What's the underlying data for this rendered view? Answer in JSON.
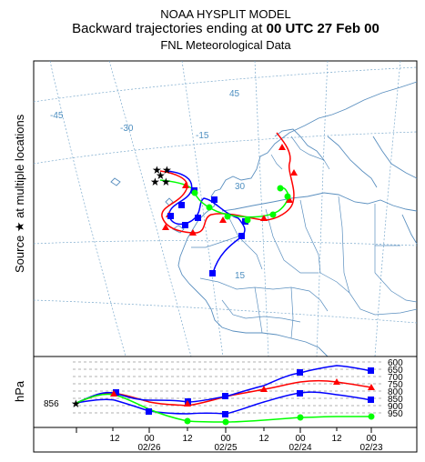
{
  "header": {
    "title_line1": "NOAA HYSPLIT MODEL",
    "title_line2_prefix": "Backward trajectories ending at ",
    "title_line2_bold": "00 UTC 27 Feb 00",
    "title_line3": "FNL  Meteorological Data"
  },
  "map": {
    "side_label": "Source ★ at multiple locations",
    "graticule_labels": [
      "-45",
      "-30",
      "-15",
      "45",
      "30",
      "15"
    ],
    "trajectory_colors": [
      "#ff0000",
      "#0000ff",
      "#00ff00"
    ]
  },
  "profile": {
    "axis_label": "hPa",
    "start_value": "856",
    "pressure_levels": [
      "600",
      "650",
      "700",
      "750",
      "800",
      "850",
      "900",
      "950"
    ],
    "time_ticks": [
      "12",
      "00",
      "12",
      "00",
      "12",
      "00",
      "12",
      "00"
    ],
    "date_labels": [
      "02/26",
      "02/25",
      "02/24",
      "02/23"
    ]
  }
}
